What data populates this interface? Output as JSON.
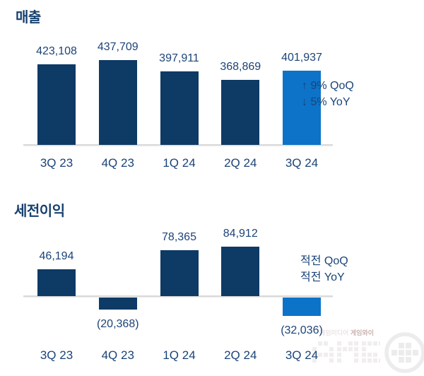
{
  "chart_data": [
    {
      "type": "bar",
      "title": "매출",
      "categories": [
        "3Q 23",
        "4Q 23",
        "1Q 24",
        "2Q 24",
        "3Q 24"
      ],
      "values": [
        423108,
        437709,
        397911,
        368869,
        401937
      ],
      "value_labels": [
        "423,108",
        "437,709",
        "397,911",
        "368,869",
        "401,937"
      ],
      "annotations": [
        "↑ 9% QoQ",
        "↓ 5% YoY"
      ],
      "bar_colors": [
        "#0e3a66",
        "#0e3a66",
        "#0e3a66",
        "#0e3a66",
        "#0c73c8"
      ],
      "xlabel": "",
      "ylabel": "",
      "grid": false,
      "legend_position": "right-annotation",
      "axis_baseline": "bottom"
    },
    {
      "type": "bar",
      "title": "세전이익",
      "categories": [
        "3Q 23",
        "4Q 23",
        "1Q 24",
        "2Q 24",
        "3Q 24"
      ],
      "values": [
        46194,
        -20368,
        78365,
        84912,
        -32036
      ],
      "value_labels": [
        "46,194",
        "(20,368)",
        "78,365",
        "84,912",
        "(32,036)"
      ],
      "annotations": [
        "적전 QoQ",
        "적전 YoY"
      ],
      "bar_colors": [
        "#0e3a66",
        "#0e3a66",
        "#0e3a66",
        "#0e3a66",
        "#0c73c8"
      ],
      "xlabel": "",
      "ylabel": "",
      "grid": false,
      "legend_position": "right-annotation",
      "axis_baseline": "zero"
    }
  ],
  "colors": {
    "bar_dark_navy": "#0e3a66",
    "bar_light_blue": "#0c73c8",
    "text_navy": "#1b4377",
    "baseline_gray": "#d9d9d9"
  },
  "watermark": {
    "tagline_light": "게임미디어 ",
    "tagline_bold": "게임와이",
    "pixel_text": "AME"
  }
}
